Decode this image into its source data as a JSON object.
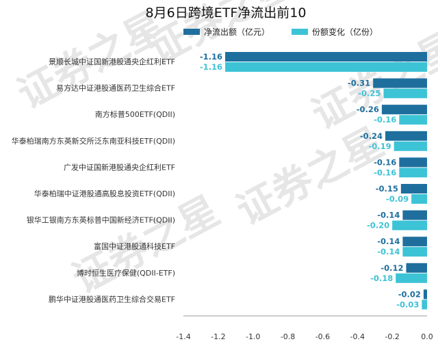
{
  "chart_data": {
    "type": "bar",
    "orientation": "horizontal",
    "title": "8月6日跨境ETF净流出前10",
    "legend": {
      "placement": "top",
      "items": [
        "净流出额（亿元）",
        "份额变化（亿份）"
      ]
    },
    "categories": [
      "景顺长城中证国新港股通央企红利ETF",
      "易方达中证港股通医药卫生综合ETF",
      "南方标普500ETF(QDII)",
      "华泰柏瑞南方东英新交所泛东南亚科技ETF(QDII)",
      "广发中证国新港股通央企红利ETF",
      "华泰柏瑞中证港股通高股息投资ETF(QDII)",
      "银华工银南方东英标普中国新经济ETF(QDII)",
      "富国中证港股通科技ETF",
      "博时恒生医疗保健(QDII-ETF)",
      "鹏华中证港股通医药卫生综合交易ETF"
    ],
    "series": [
      {
        "name": "净流出额（亿元）",
        "color": "#1e6f9e",
        "values": [
          -1.16,
          -0.31,
          -0.26,
          -0.24,
          -0.16,
          -0.15,
          -0.14,
          -0.14,
          -0.12,
          -0.02
        ]
      },
      {
        "name": "份额变化（亿份）",
        "color": "#3cc3d6",
        "values": [
          -1.16,
          -0.25,
          -0.16,
          -0.19,
          -0.16,
          -0.09,
          -0.2,
          -0.14,
          -0.18,
          -0.03
        ]
      }
    ],
    "xlim": [
      -1.4,
      0.0
    ],
    "xticks": [
      "-1.4",
      "-1.2",
      "-1.0",
      "-0.8",
      "-0.6",
      "-0.4",
      "-0.2",
      "0.0"
    ],
    "value_labels": true,
    "grid": false,
    "watermark": "证券之星"
  }
}
